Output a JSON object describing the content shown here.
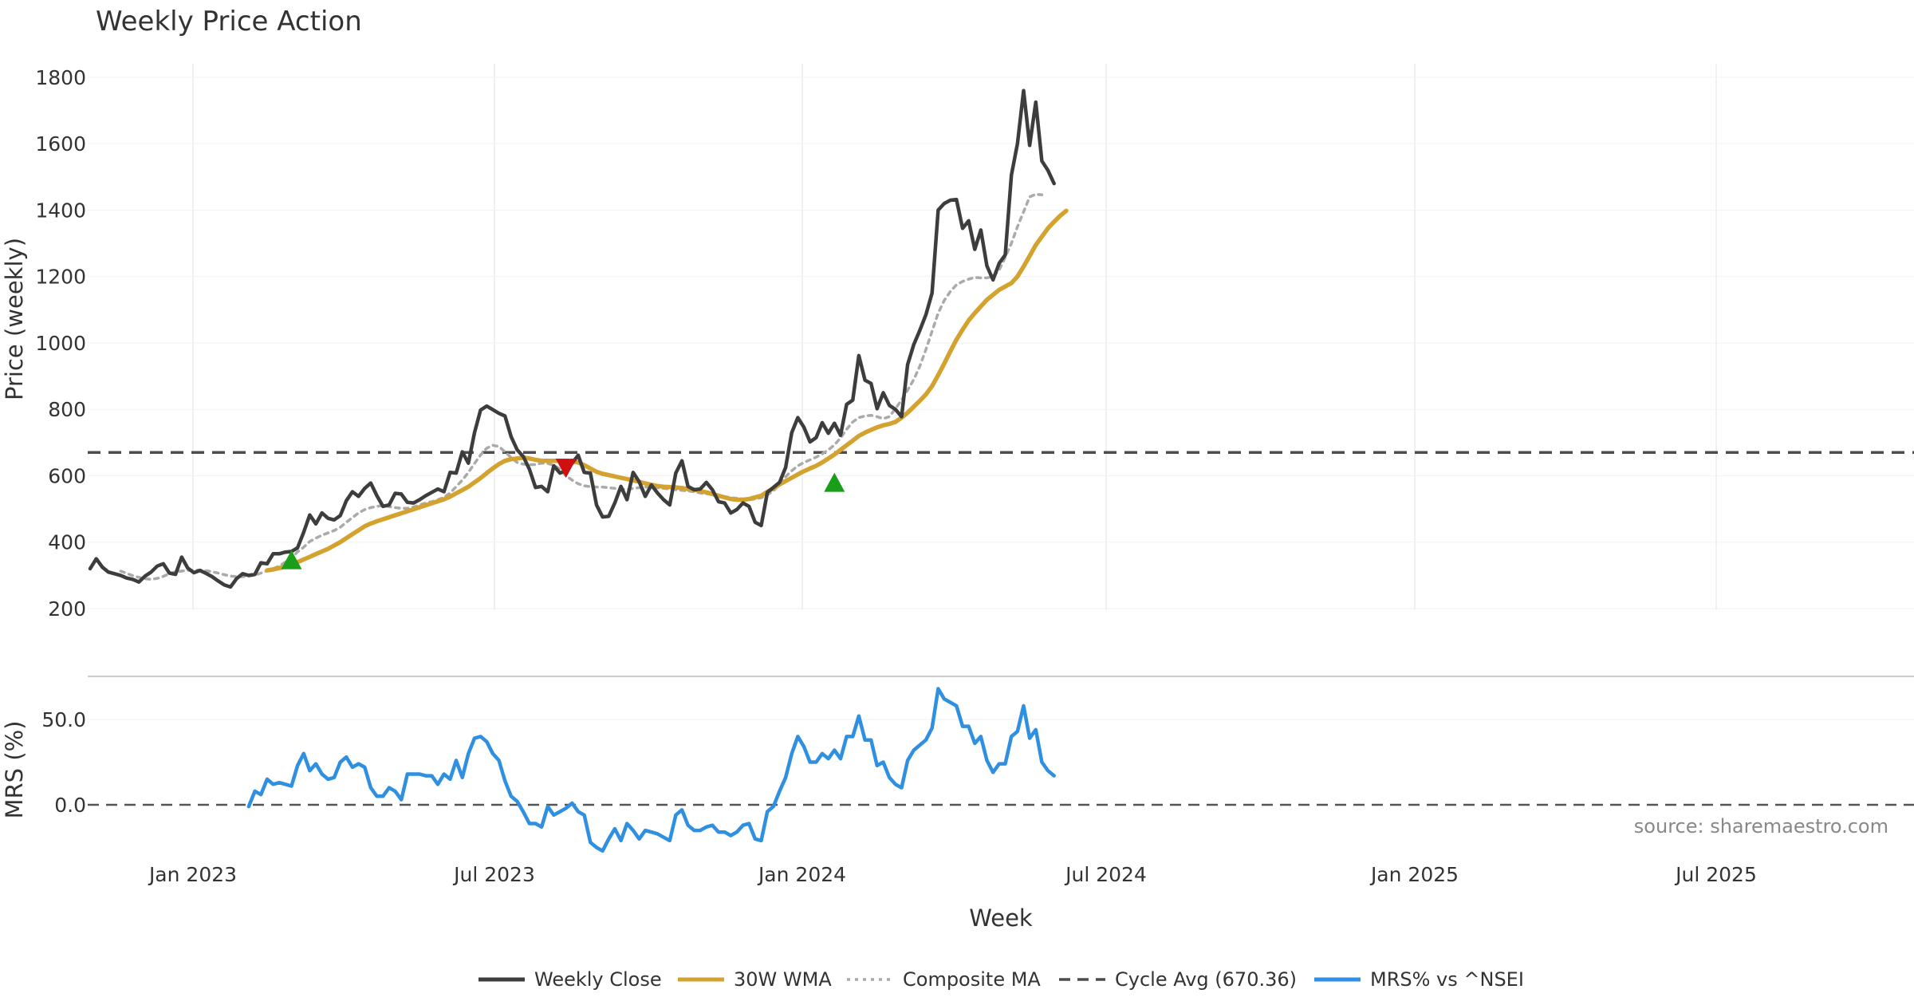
{
  "chart_data": {
    "type": "line",
    "title": "Weekly Price Action",
    "xlabel": "Week",
    "x_ticks": [
      "Jan 2023",
      "Jul 2023",
      "Jan 2024",
      "Jul 2024",
      "Jan 2025",
      "Jul 2025"
    ],
    "source_label": "source: sharemaestro.com",
    "colors": {
      "close": "#3d3d3d",
      "wma": "#d4a22e",
      "composite": "#aaaaaa",
      "cycle": "#4d4d4d",
      "mrs": "#2f8fe0",
      "buy": "#1a9e1a",
      "sell": "#d01010"
    },
    "price_panel": {
      "ylabel": "Price (weekly)",
      "ylim": [
        200,
        1850
      ],
      "yticks": [
        "200",
        "400",
        "600",
        "800",
        "1000",
        "1200",
        "1400",
        "1600",
        "1800"
      ],
      "cycle_avg": 670.36,
      "series": [
        {
          "name": "Weekly Close",
          "start_week": 0,
          "values": [
            320,
            350,
            325,
            310,
            305,
            300,
            292,
            288,
            280,
            298,
            310,
            328,
            335,
            307,
            303,
            355,
            322,
            308,
            315,
            306,
            296,
            283,
            271,
            265,
            290,
            305,
            300,
            303,
            338,
            335,
            365,
            365,
            370,
            372,
            383,
            430,
            482,
            455,
            488,
            472,
            467,
            480,
            525,
            552,
            538,
            562,
            578,
            540,
            508,
            512,
            547,
            545,
            520,
            518,
            528,
            540,
            550,
            560,
            552,
            610,
            608,
            672,
            638,
            730,
            798,
            810,
            799,
            788,
            780,
            718,
            678,
            658,
            620,
            565,
            568,
            552,
            630,
            608,
            615,
            638,
            662,
            610,
            608,
            512,
            476,
            478,
            518,
            568,
            528,
            610,
            582,
            538,
            572,
            548,
            528,
            512,
            608,
            645,
            568,
            558,
            560,
            580,
            558,
            522,
            518,
            488,
            498,
            518,
            508,
            460,
            450,
            550,
            565,
            580,
            625,
            730,
            775,
            746,
            702,
            715,
            760,
            728,
            758,
            722,
            815,
            828,
            962,
            888,
            878,
            802,
            850,
            812,
            800,
            778,
            935,
            995,
            1038,
            1085,
            1150,
            1400,
            1420,
            1430,
            1432,
            1345,
            1368,
            1282,
            1340,
            1232,
            1190,
            1240,
            1265,
            1505,
            1600,
            1760,
            1595,
            1725,
            1548,
            1520,
            1480
          ]
        },
        {
          "name": "30W WMA",
          "start_week": 29,
          "values": [
            315,
            318,
            322,
            326,
            332,
            340,
            348,
            356,
            364,
            372,
            380,
            390,
            400,
            412,
            424,
            436,
            448,
            456,
            463,
            469,
            475,
            481,
            487,
            493,
            499,
            505,
            511,
            517,
            523,
            529,
            537,
            547,
            557,
            567,
            580,
            593,
            608,
            622,
            635,
            645,
            650,
            652,
            655,
            652,
            648,
            645,
            645,
            645,
            645,
            645,
            643,
            640,
            632,
            622,
            612,
            606,
            602,
            598,
            594,
            590,
            586,
            582,
            577,
            573,
            569,
            567,
            566,
            565,
            563,
            560,
            558,
            554,
            550,
            545,
            540,
            535,
            530,
            528,
            528,
            530,
            535,
            540,
            552,
            562,
            574,
            584,
            594,
            604,
            614,
            622,
            630,
            640,
            652,
            664,
            678,
            692,
            706,
            720,
            730,
            738,
            746,
            752,
            756,
            762,
            775,
            790,
            808,
            826,
            845,
            870,
            903,
            938,
            975,
            1010,
            1040,
            1068,
            1090,
            1110,
            1130,
            1145,
            1160,
            1170,
            1180,
            1200,
            1230,
            1262,
            1295,
            1320,
            1345,
            1365,
            1383,
            1398
          ]
        },
        {
          "name": "Composite MA",
          "start_week": 5,
          "values": [
            313,
            306,
            299,
            294,
            290,
            288,
            291,
            297,
            305,
            311,
            313,
            315,
            315,
            316,
            314,
            311,
            307,
            302,
            298,
            296,
            296,
            298,
            301,
            307,
            314,
            320,
            328,
            340,
            352,
            371,
            385,
            402,
            412,
            421,
            428,
            435,
            445,
            460,
            474,
            488,
            498,
            504,
            508,
            510,
            507,
            504,
            502,
            502,
            506,
            512,
            518,
            522,
            528,
            535,
            548,
            567,
            587,
            610,
            637,
            663,
            683,
            692,
            688,
            672,
            655,
            640,
            635,
            633,
            634,
            638,
            637,
            632,
            620,
            600,
            587,
            576,
            570,
            567,
            566,
            566,
            564,
            562,
            560,
            558,
            562,
            564,
            566,
            566,
            564,
            562,
            560,
            558,
            556,
            554,
            552,
            548,
            546,
            544,
            541,
            537,
            534,
            532,
            530,
            528,
            530,
            534,
            542,
            555,
            574,
            597,
            615,
            630,
            640,
            648,
            656,
            666,
            678,
            693,
            714,
            740,
            762,
            775,
            780,
            782,
            778,
            772,
            778,
            802,
            828,
            858,
            890,
            930,
            980,
            1035,
            1090,
            1128,
            1155,
            1175,
            1185,
            1192,
            1197,
            1196,
            1196,
            1200,
            1220,
            1258,
            1300,
            1350,
            1395,
            1440,
            1448,
            1446
          ]
        }
      ],
      "signals": [
        {
          "type": "buy",
          "week": 33,
          "price": 345
        },
        {
          "type": "sell",
          "week": 78,
          "price": 625
        },
        {
          "type": "buy",
          "week": 122,
          "price": 578
        }
      ]
    },
    "mrs_panel": {
      "ylabel": "MRS (%)",
      "ylim": [
        -30,
        72
      ],
      "yticks": [
        "0.0",
        "50.0"
      ],
      "series": [
        {
          "name": "MRS% vs ^NSEI",
          "start_week": 26,
          "values": [
            -1,
            8,
            6,
            15,
            12,
            13,
            12,
            11,
            23,
            30,
            20,
            24,
            18,
            15,
            16,
            25,
            28,
            22,
            24,
            22,
            10,
            5,
            5,
            10,
            8,
            3,
            18,
            18,
            18,
            17,
            17,
            12,
            18,
            15,
            26,
            16,
            30,
            39,
            40,
            37,
            30,
            26,
            14,
            5,
            2,
            -4,
            -11,
            -11,
            -13,
            -1,
            -6,
            -4,
            -2,
            1,
            -4,
            -6,
            -22,
            -25,
            -27,
            -20,
            -14,
            -21,
            -11,
            -15,
            -20,
            -15,
            -16,
            -17,
            -19,
            -21,
            -6,
            -3,
            -12,
            -15,
            -15,
            -13,
            -12,
            -16,
            -16,
            -18,
            -16,
            -12,
            -11,
            -20,
            -21,
            -4,
            -1,
            8,
            16,
            30,
            40,
            34,
            25,
            25,
            30,
            27,
            32,
            27,
            40,
            40,
            52,
            38,
            38,
            23,
            25,
            16,
            12,
            10,
            26,
            32,
            35,
            38,
            45,
            68,
            62,
            60,
            58,
            46,
            46,
            36,
            40,
            26,
            19,
            24,
            24,
            40,
            43,
            58,
            39,
            44,
            25,
            20,
            17
          ]
        }
      ]
    },
    "legend": [
      {
        "label": "Weekly Close",
        "style": "solid",
        "color": "#3d3d3d"
      },
      {
        "label": "30W WMA",
        "style": "solid",
        "color": "#d4a22e"
      },
      {
        "label": "Composite MA",
        "style": "dotted",
        "color": "#aaaaaa"
      },
      {
        "label": "Cycle Avg (670.36)",
        "style": "dashed",
        "color": "#4d4d4d"
      },
      {
        "label": "MRS% vs ^NSEI",
        "style": "solid",
        "color": "#2f8fe0"
      }
    ]
  }
}
